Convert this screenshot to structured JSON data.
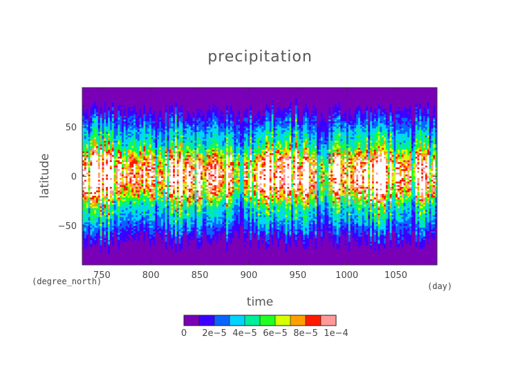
{
  "chart_data": {
    "type": "heatmap",
    "title": "precipitation",
    "xlabel": "time",
    "ylabel": "latitude",
    "x_unit": "(day)",
    "y_unit": "(degree_north)",
    "xlim": [
      730,
      1092
    ],
    "ylim": [
      -90,
      90
    ],
    "x_ticks": [
      750,
      800,
      850,
      900,
      950,
      1000,
      1050
    ],
    "y_ticks": [
      50,
      0,
      -50
    ],
    "y_tick_labels": [
      "50",
      "0",
      "−50"
    ],
    "colorbar": {
      "levels": [
        0,
        1e-05,
        2e-05,
        3e-05,
        4e-05,
        5e-05,
        6e-05,
        7e-05,
        8e-05,
        9e-05,
        0.0001
      ],
      "tick_labels": [
        "0",
        "2e−5",
        "4e−5",
        "6e−5",
        "8e−5",
        "1e−4"
      ],
      "colors": [
        "#7a00b8",
        "#3b00ff",
        "#0a64ff",
        "#00d4ff",
        "#00ee9a",
        "#22ff22",
        "#d6ff00",
        "#ffa000",
        "#ff1a00",
        "#ff9a9a"
      ],
      "above_max_color": "#ffffff"
    },
    "latitude_profile": [
      {
        "lat": -90,
        "value": 1.5e-06
      },
      {
        "lat": -75,
        "value": 4e-06
      },
      {
        "lat": -60,
        "value": 1.4e-05
      },
      {
        "lat": -45,
        "value": 3.2e-05
      },
      {
        "lat": -30,
        "value": 4.5e-05
      },
      {
        "lat": -15,
        "value": 8.5e-05
      },
      {
        "lat": 0,
        "value": 0.000105
      },
      {
        "lat": 15,
        "value": 8.8e-05
      },
      {
        "lat": 30,
        "value": 4.8e-05
      },
      {
        "lat": 45,
        "value": 3.3e-05
      },
      {
        "lat": 60,
        "value": 1.5e-05
      },
      {
        "lat": 75,
        "value": 4e-06
      },
      {
        "lat": 90,
        "value": 1.5e-06
      }
    ]
  }
}
